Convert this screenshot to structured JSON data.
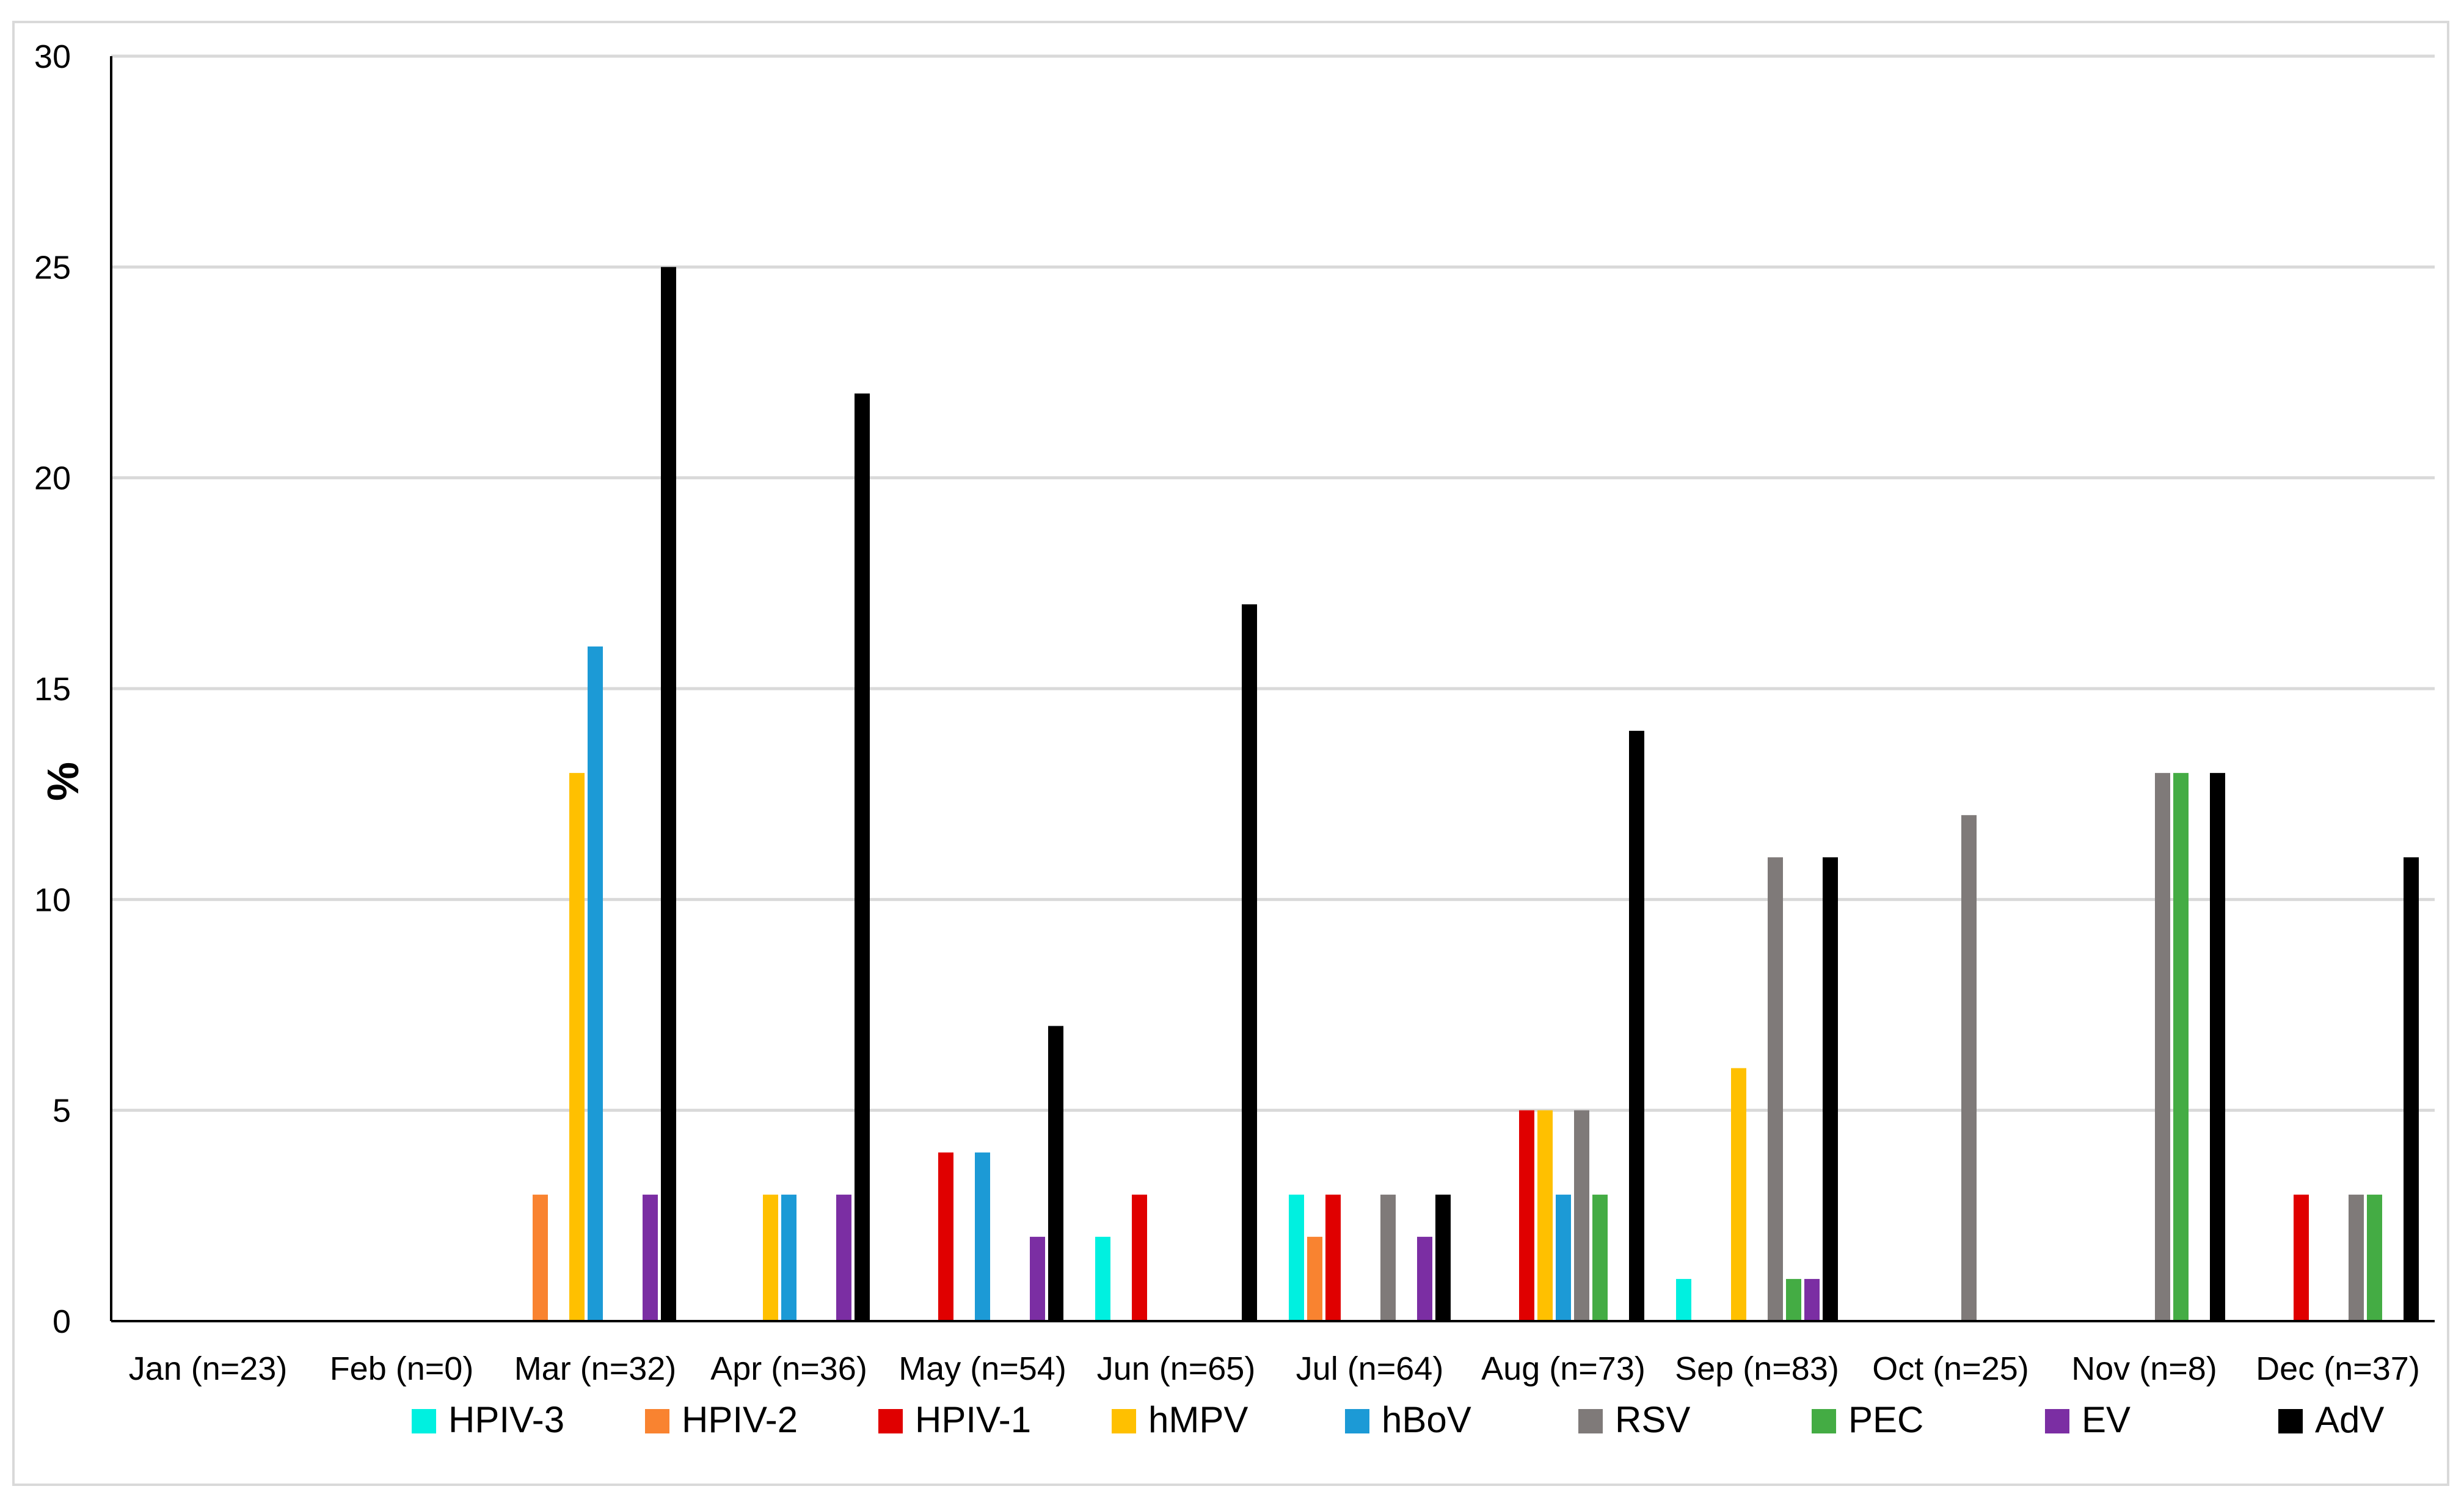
{
  "chart_data": {
    "type": "bar",
    "ylabel": "%",
    "ylim": [
      0,
      30
    ],
    "yticks": [
      0,
      5,
      10,
      15,
      20,
      25,
      30
    ],
    "grid": true,
    "legend_position": "bottom",
    "categories": [
      "Jan (n=23)",
      "Feb (n=0)",
      "Mar (n=32)",
      "Apr (n=36)",
      "May (n=54)",
      "Jun (n=65)",
      "Jul (n=64)",
      "Aug (n=73)",
      "Sep (n=83)",
      "Oct (n=25)",
      "Nov (n=8)",
      "Dec (n=37)"
    ],
    "series": [
      {
        "name": "HPIV-3",
        "color": "#00f0e0",
        "values": [
          0,
          0,
          0,
          0,
          0,
          2,
          3,
          0,
          1,
          0,
          0,
          0
        ]
      },
      {
        "name": "HPIV-2",
        "color": "#f98330",
        "values": [
          0,
          0,
          3,
          0,
          0,
          0,
          2,
          0,
          0,
          0,
          0,
          0
        ]
      },
      {
        "name": "HPIV-1",
        "color": "#e00000",
        "values": [
          0,
          0,
          0,
          0,
          4,
          3,
          3,
          5,
          0,
          0,
          0,
          3
        ]
      },
      {
        "name": "hMPV",
        "color": "#ffc000",
        "values": [
          0,
          0,
          13,
          3,
          0,
          0,
          0,
          5,
          6,
          0,
          0,
          0
        ]
      },
      {
        "name": "hBoV",
        "color": "#1c9ad6",
        "values": [
          0,
          0,
          16,
          3,
          4,
          0,
          0,
          3,
          0,
          0,
          0,
          0
        ]
      },
      {
        "name": "RSV",
        "color": "#7f7a79",
        "values": [
          0,
          0,
          0,
          0,
          0,
          0,
          3,
          5,
          11,
          12,
          13,
          3
        ]
      },
      {
        "name": "PEC",
        "color": "#44ac44",
        "values": [
          0,
          0,
          0,
          0,
          0,
          0,
          0,
          3,
          1,
          0,
          13,
          3
        ]
      },
      {
        "name": "EV",
        "color": "#7b2ea3",
        "values": [
          0,
          0,
          3,
          3,
          2,
          0,
          2,
          0,
          1,
          0,
          0,
          0
        ]
      },
      {
        "name": "AdV",
        "color": "#000000",
        "values": [
          0,
          0,
          25,
          22,
          7,
          17,
          3,
          14,
          11,
          0,
          13,
          11
        ]
      }
    ]
  }
}
